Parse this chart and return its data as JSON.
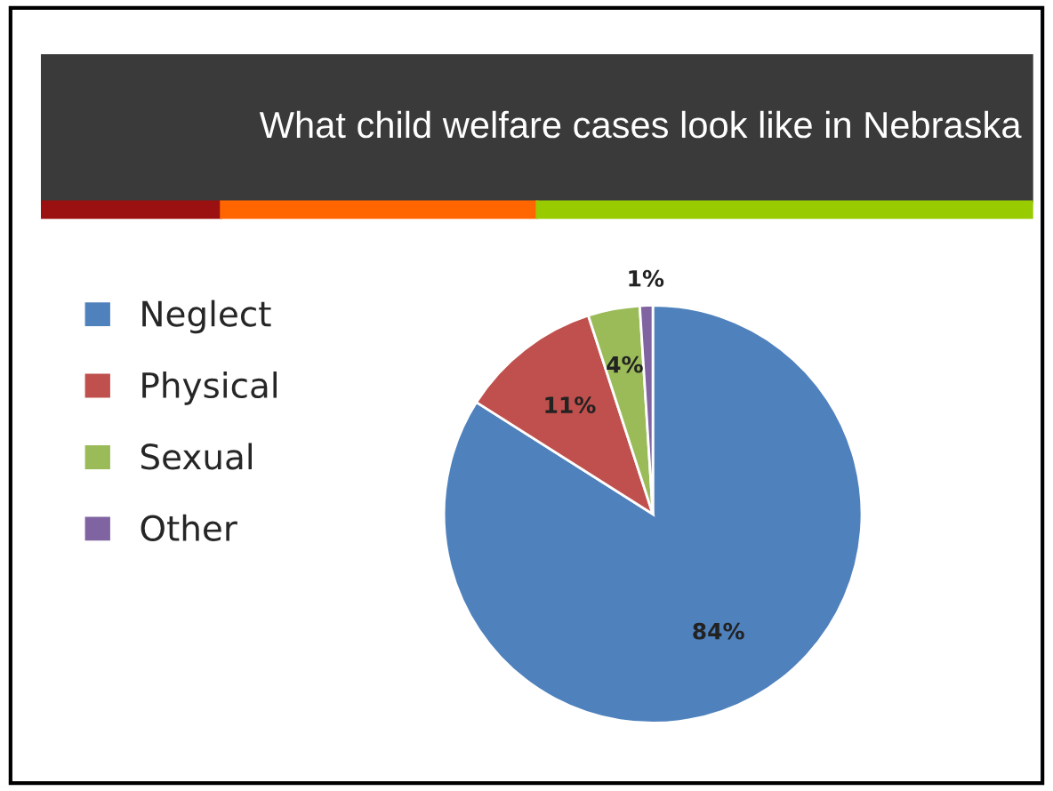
{
  "chart_data": {
    "type": "pie",
    "title": "What child welfare cases look like in Nebraska",
    "categories": [
      "Neglect",
      "Physical",
      "Sexual",
      "Other"
    ],
    "values": [
      84,
      11,
      4,
      1
    ],
    "colors": [
      "#4f81bd",
      "#c0504d",
      "#9bbb59",
      "#8064a2"
    ],
    "value_labels": [
      "84%",
      "11%",
      "4%",
      "1%"
    ],
    "legend": "left"
  }
}
